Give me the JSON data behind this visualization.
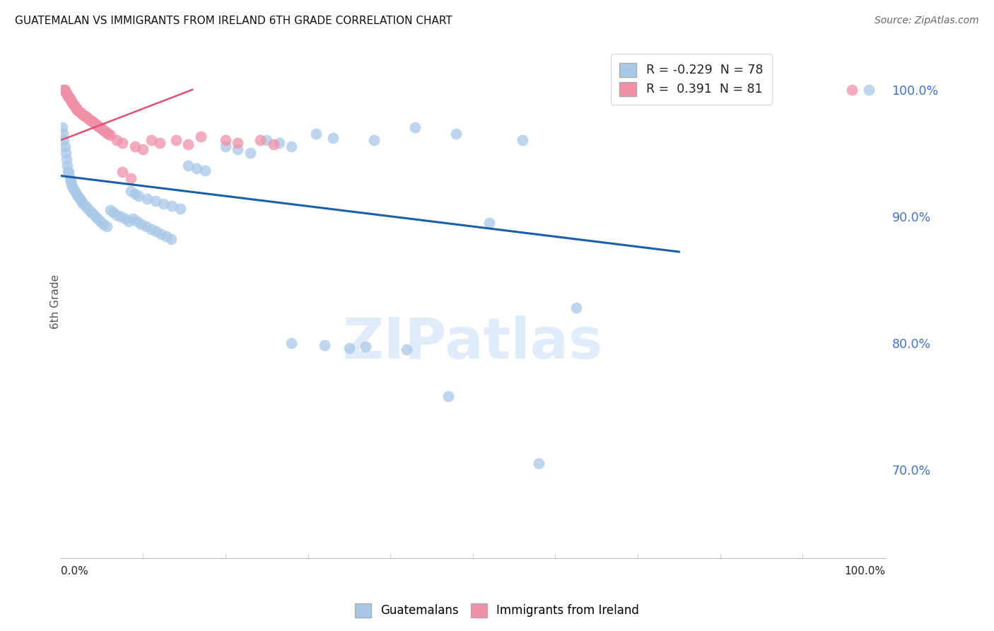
{
  "title": "GUATEMALAN VS IMMIGRANTS FROM IRELAND 6TH GRADE CORRELATION CHART",
  "source": "Source: ZipAtlas.com",
  "ylabel": "6th Grade",
  "legend_r_blue": "R = -0.229",
  "legend_n_blue": "N = 78",
  "legend_r_pink": "R =  0.391",
  "legend_n_pink": "N = 81",
  "blue_color": "#a8c8e8",
  "pink_color": "#f090a8",
  "trendline_blue_color": "#1a5fa8",
  "trendline_pink_color": "#e05070",
  "watermark": "ZIPatlas",
  "blue_scatter": [
    [
      0.002,
      0.97
    ],
    [
      0.003,
      0.965
    ],
    [
      0.004,
      0.96
    ],
    [
      0.005,
      0.955
    ],
    [
      0.006,
      0.95
    ],
    [
      0.007,
      0.945
    ],
    [
      0.008,
      0.94
    ],
    [
      0.009,
      0.935
    ],
    [
      0.01,
      0.935
    ],
    [
      0.011,
      0.93
    ],
    [
      0.012,
      0.928
    ],
    [
      0.013,
      0.925
    ],
    [
      0.015,
      0.922
    ],
    [
      0.017,
      0.92
    ],
    [
      0.019,
      0.918
    ],
    [
      0.021,
      0.916
    ],
    [
      0.023,
      0.914
    ],
    [
      0.025,
      0.912
    ],
    [
      0.027,
      0.91
    ],
    [
      0.03,
      0.908
    ],
    [
      0.033,
      0.906
    ],
    [
      0.036,
      0.904
    ],
    [
      0.039,
      0.902
    ],
    [
      0.042,
      0.9
    ],
    [
      0.045,
      0.898
    ],
    [
      0.048,
      0.896
    ],
    [
      0.052,
      0.894
    ],
    [
      0.056,
      0.892
    ],
    [
      0.06,
      0.905
    ],
    [
      0.064,
      0.903
    ],
    [
      0.068,
      0.901
    ],
    [
      0.073,
      0.9
    ],
    [
      0.078,
      0.898
    ],
    [
      0.083,
      0.896
    ],
    [
      0.088,
      0.898
    ],
    [
      0.093,
      0.896
    ],
    [
      0.098,
      0.894
    ],
    [
      0.104,
      0.892
    ],
    [
      0.11,
      0.89
    ],
    [
      0.116,
      0.888
    ],
    [
      0.122,
      0.886
    ],
    [
      0.128,
      0.884
    ],
    [
      0.134,
      0.882
    ],
    [
      0.085,
      0.92
    ],
    [
      0.09,
      0.918
    ],
    [
      0.095,
      0.916
    ],
    [
      0.105,
      0.914
    ],
    [
      0.115,
      0.912
    ],
    [
      0.125,
      0.91
    ],
    [
      0.135,
      0.908
    ],
    [
      0.145,
      0.906
    ],
    [
      0.155,
      0.94
    ],
    [
      0.165,
      0.938
    ],
    [
      0.175,
      0.936
    ],
    [
      0.2,
      0.955
    ],
    [
      0.215,
      0.953
    ],
    [
      0.23,
      0.95
    ],
    [
      0.25,
      0.96
    ],
    [
      0.265,
      0.958
    ],
    [
      0.28,
      0.955
    ],
    [
      0.31,
      0.965
    ],
    [
      0.33,
      0.962
    ],
    [
      0.38,
      0.96
    ],
    [
      0.43,
      0.97
    ],
    [
      0.48,
      0.965
    ],
    [
      0.52,
      0.895
    ],
    [
      0.56,
      0.96
    ],
    [
      0.625,
      0.828
    ],
    [
      0.98,
      1.0
    ],
    [
      0.28,
      0.8
    ],
    [
      0.32,
      0.798
    ],
    [
      0.35,
      0.796
    ],
    [
      0.37,
      0.797
    ],
    [
      0.42,
      0.795
    ],
    [
      0.47,
      0.758
    ],
    [
      0.58,
      0.705
    ]
  ],
  "pink_scatter": [
    [
      0.005,
      1.0
    ],
    [
      0.006,
      0.998
    ],
    [
      0.007,
      0.997
    ],
    [
      0.008,
      0.996
    ],
    [
      0.009,
      0.995
    ],
    [
      0.01,
      0.994
    ],
    [
      0.011,
      0.993
    ],
    [
      0.012,
      0.992
    ],
    [
      0.013,
      0.991
    ],
    [
      0.014,
      0.99
    ],
    [
      0.015,
      0.989
    ],
    [
      0.016,
      0.988
    ],
    [
      0.017,
      0.987
    ],
    [
      0.018,
      0.986
    ],
    [
      0.019,
      0.985
    ],
    [
      0.02,
      0.984
    ],
    [
      0.022,
      0.983
    ],
    [
      0.024,
      0.982
    ],
    [
      0.026,
      0.981
    ],
    [
      0.028,
      0.98
    ],
    [
      0.03,
      0.979
    ],
    [
      0.032,
      0.978
    ],
    [
      0.034,
      0.977
    ],
    [
      0.036,
      0.976
    ],
    [
      0.038,
      0.975
    ],
    [
      0.04,
      0.974
    ],
    [
      0.042,
      0.973
    ],
    [
      0.044,
      0.972
    ],
    [
      0.046,
      0.971
    ],
    [
      0.048,
      0.97
    ],
    [
      0.05,
      0.969
    ],
    [
      0.052,
      0.968
    ],
    [
      0.054,
      0.967
    ],
    [
      0.056,
      0.966
    ],
    [
      0.058,
      0.965
    ],
    [
      0.06,
      0.964
    ],
    [
      0.003,
      1.0
    ],
    [
      0.004,
      1.0
    ],
    [
      0.068,
      0.96
    ],
    [
      0.075,
      0.958
    ],
    [
      0.09,
      0.955
    ],
    [
      0.1,
      0.953
    ],
    [
      0.11,
      0.96
    ],
    [
      0.12,
      0.958
    ],
    [
      0.14,
      0.96
    ],
    [
      0.155,
      0.957
    ],
    [
      0.17,
      0.963
    ],
    [
      0.075,
      0.935
    ],
    [
      0.085,
      0.93
    ],
    [
      0.2,
      0.96
    ],
    [
      0.215,
      0.958
    ],
    [
      0.242,
      0.96
    ],
    [
      0.258,
      0.957
    ],
    [
      0.96,
      1.0
    ]
  ],
  "blue_trendline": [
    [
      0.0,
      0.932
    ],
    [
      0.75,
      0.872
    ]
  ],
  "pink_trendline": [
    [
      0.0,
      0.96
    ],
    [
      0.16,
      1.0
    ]
  ],
  "xlim": [
    0.0,
    1.0
  ],
  "ylim": [
    0.63,
    1.035
  ],
  "yticks": [
    1.0,
    0.9,
    0.8,
    0.7
  ],
  "ytick_labels": [
    "100.0%",
    "90.0%",
    "80.0%",
    "70.0%"
  ],
  "grid_color": "#cccccc",
  "figsize": [
    14.06,
    8.92
  ],
  "dpi": 100
}
